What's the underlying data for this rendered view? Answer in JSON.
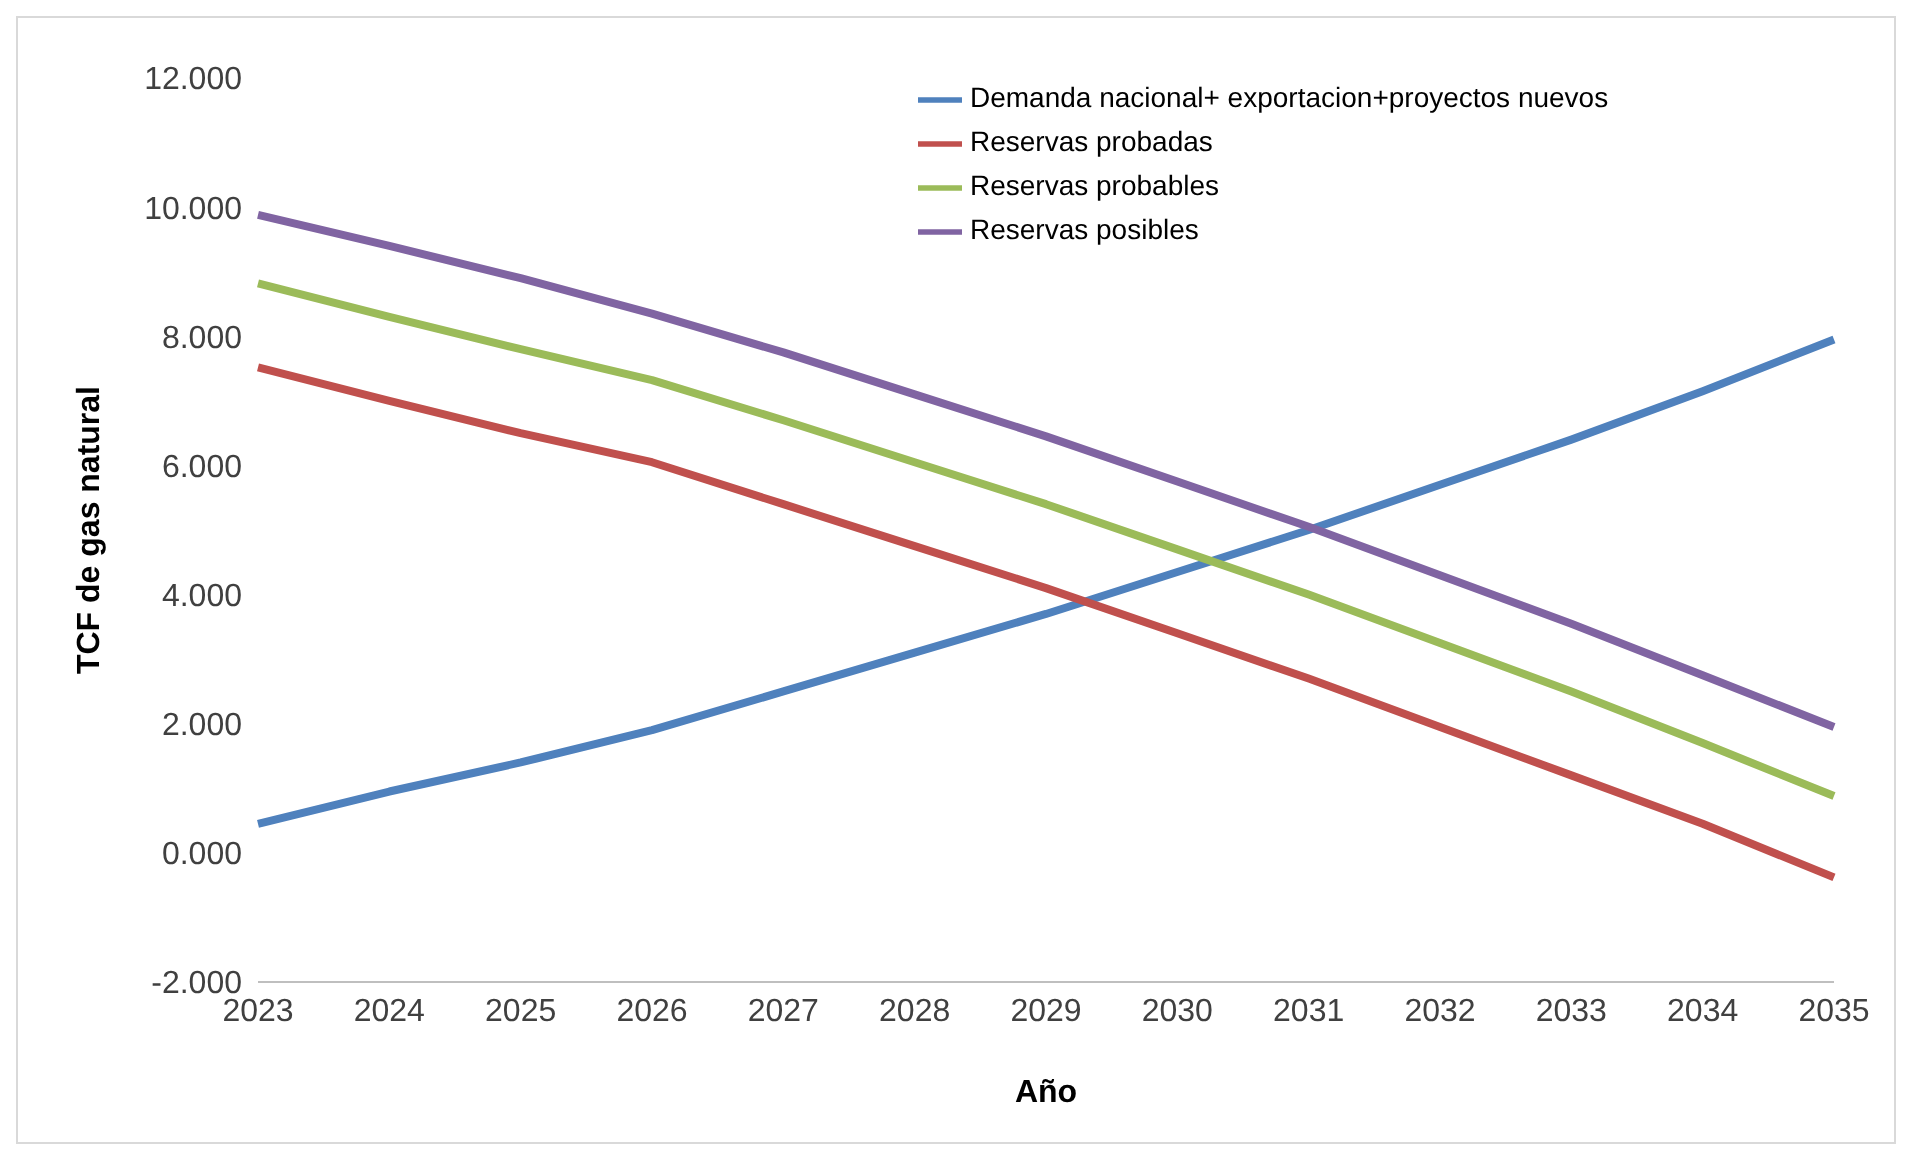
{
  "chart_data": {
    "type": "line",
    "xlabel": "Año",
    "ylabel": "TCF de gas natural",
    "categories": [
      "2023",
      "2024",
      "2025",
      "2026",
      "2027",
      "2028",
      "2029",
      "2030",
      "2031",
      "2032",
      "2033",
      "2034",
      "2035"
    ],
    "series": [
      {
        "name": "Demanda nacional+ exportacion+proyectos nuevos",
        "color": "#4f81bd",
        "values": [
          0.45,
          0.95,
          1.4,
          1.9,
          2.5,
          3.1,
          3.7,
          4.35,
          5.0,
          5.7,
          6.4,
          7.15,
          7.95
        ]
      },
      {
        "name": "Reservas probadas",
        "color": "#c0504d",
        "values": [
          7.52,
          7.0,
          6.5,
          6.05,
          5.4,
          4.75,
          4.1,
          3.4,
          2.7,
          1.95,
          1.2,
          0.45,
          -0.38
        ]
      },
      {
        "name": "Reservas probables",
        "color": "#9bbb59",
        "values": [
          8.82,
          8.3,
          7.8,
          7.32,
          6.7,
          6.05,
          5.4,
          4.7,
          4.0,
          3.25,
          2.5,
          1.7,
          0.88
        ]
      },
      {
        "name": "Reservas posibles",
        "color": "#8064a2",
        "values": [
          9.88,
          9.4,
          8.9,
          8.35,
          7.75,
          7.1,
          6.45,
          5.75,
          5.05,
          4.3,
          3.55,
          2.75,
          1.95
        ]
      }
    ],
    "ylim": [
      -2,
      12
    ],
    "yticks": [
      {
        "value": -2,
        "label": "-2.000"
      },
      {
        "value": 0,
        "label": "0.000"
      },
      {
        "value": 2,
        "label": "2.000"
      },
      {
        "value": 4,
        "label": "4.000"
      },
      {
        "value": 6,
        "label": "6.000"
      },
      {
        "value": 8,
        "label": "8.000"
      },
      {
        "value": 10,
        "label": "10.000"
      },
      {
        "value": 12,
        "label": "12.000"
      }
    ],
    "grid": false,
    "legend": "top right",
    "marker": "none",
    "line_style": "solid"
  }
}
